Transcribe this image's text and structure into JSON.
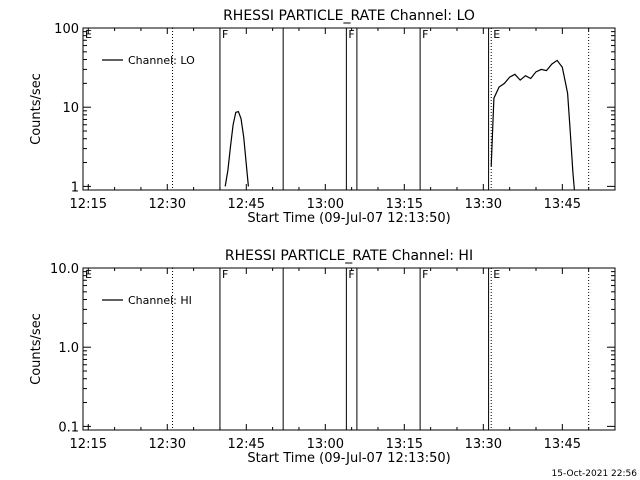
{
  "footer": {
    "timestamp": "15-Oct-2021 22:56"
  },
  "chart_data": [
    {
      "type": "line",
      "title": "RHESSI PARTICLE_RATE Channel: LO",
      "xlabel": "Start Time (09-Jul-07 12:13:50)",
      "ylabel": "Counts/sec",
      "yscale": "log",
      "xlim": [
        "12:14",
        "13:55"
      ],
      "ylim": [
        0.9,
        100
      ],
      "x_ticks": [
        "12:15",
        "12:30",
        "12:45",
        "13:00",
        "13:15",
        "13:30",
        "13:45"
      ],
      "y_ticks": [
        "1",
        "10",
        "100"
      ],
      "legend": {
        "entries": [
          "Channel: LO"
        ],
        "position": "top-left"
      },
      "grid": false,
      "markers": [
        {
          "label": "E",
          "time": "12:14",
          "style": "none"
        },
        {
          "label": "",
          "time": "12:31",
          "style": "dotted"
        },
        {
          "label": "F",
          "time": "12:40",
          "style": "solid"
        },
        {
          "label": "",
          "time": "12:52",
          "style": "solid"
        },
        {
          "label": "F",
          "time": "13:04",
          "style": "solid"
        },
        {
          "label": "",
          "time": "13:06",
          "style": "solid"
        },
        {
          "label": "F",
          "time": "13:18",
          "style": "solid"
        },
        {
          "label": "",
          "time": "13:31",
          "style": "solid"
        },
        {
          "label": "E",
          "time": "13:31.5",
          "style": "dotted"
        },
        {
          "label": "",
          "time": "13:50",
          "style": "dotted"
        }
      ],
      "series": [
        {
          "name": "Channel: LO",
          "segments": [
            [
              [
                "12:41",
                1.0
              ],
              [
                "12:41.5",
                1.6
              ],
              [
                "12:42",
                3.2
              ],
              [
                "12:42.5",
                6.0
              ],
              [
                "12:43",
                8.6
              ],
              [
                "12:43.5",
                8.8
              ],
              [
                "12:44",
                7.2
              ],
              [
                "12:44.5",
                4.2
              ],
              [
                "12:45",
                1.9
              ],
              [
                "12:45.4",
                1.0
              ]
            ],
            [
              [
                "13:31.5",
                1.8
              ],
              [
                "13:32",
                13
              ],
              [
                "13:33",
                18
              ],
              [
                "13:34",
                20
              ],
              [
                "13:35",
                24
              ],
              [
                "13:36",
                26
              ],
              [
                "13:37",
                22
              ],
              [
                "13:38",
                25
              ],
              [
                "13:39",
                23
              ],
              [
                "13:40",
                28
              ],
              [
                "13:41",
                30
              ],
              [
                "13:42",
                29
              ],
              [
                "13:43",
                35
              ],
              [
                "13:44",
                39
              ],
              [
                "13:45",
                32
              ],
              [
                "13:46",
                15
              ],
              [
                "13:46.5",
                5
              ],
              [
                "13:47",
                1.5
              ],
              [
                "13:47.3",
                0.9
              ]
            ]
          ]
        }
      ]
    },
    {
      "type": "line",
      "title": "RHESSI PARTICLE_RATE Channel: HI",
      "xlabel": "Start Time (09-Jul-07 12:13:50)",
      "ylabel": "Counts/sec",
      "yscale": "log",
      "xlim": [
        "12:14",
        "13:55"
      ],
      "ylim": [
        0.09,
        10
      ],
      "x_ticks": [
        "12:15",
        "12:30",
        "12:45",
        "13:00",
        "13:15",
        "13:30",
        "13:45"
      ],
      "y_ticks": [
        "0.1",
        "1.0",
        "10.0"
      ],
      "legend": {
        "entries": [
          "Channel: HI"
        ],
        "position": "top-left"
      },
      "grid": false,
      "markers": [
        {
          "label": "E",
          "time": "12:14",
          "style": "none"
        },
        {
          "label": "",
          "time": "12:31",
          "style": "dotted"
        },
        {
          "label": "F",
          "time": "12:40",
          "style": "solid"
        },
        {
          "label": "",
          "time": "12:52",
          "style": "solid"
        },
        {
          "label": "F",
          "time": "13:04",
          "style": "solid"
        },
        {
          "label": "",
          "time": "13:06",
          "style": "solid"
        },
        {
          "label": "F",
          "time": "13:18",
          "style": "solid"
        },
        {
          "label": "",
          "time": "13:31",
          "style": "solid"
        },
        {
          "label": "E",
          "time": "13:31.5",
          "style": "dotted"
        },
        {
          "label": "",
          "time": "13:50",
          "style": "dotted"
        }
      ],
      "series": [
        {
          "name": "Channel: HI",
          "segments": []
        }
      ]
    }
  ]
}
